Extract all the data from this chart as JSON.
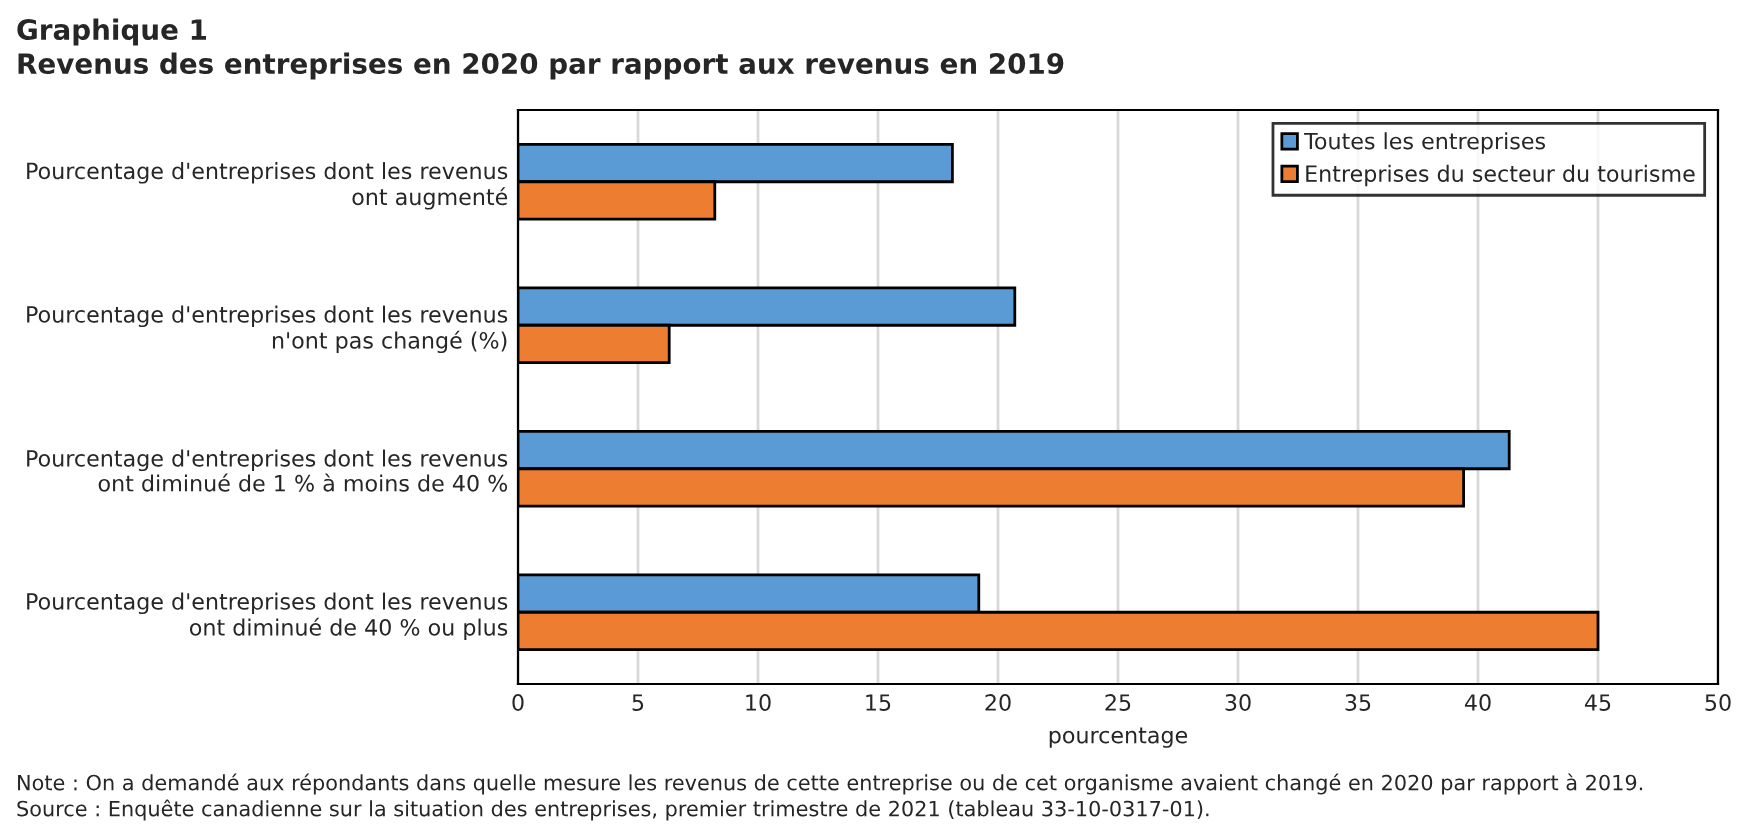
{
  "chart_data": {
    "type": "bar",
    "orientation": "horizontal",
    "title": "Graphique 1",
    "subtitle": "Revenus des entreprises en 2020 par rapport aux revenus en 2019",
    "categories": [
      "Pourcentage d'entreprises dont les revenus\nont augmenté",
      "Pourcentage d'entreprises dont les revenus\nn'ont pas changé (%)",
      "Pourcentage d'entreprises dont les revenus\nont diminué de 1 % à moins de 40 %",
      "Pourcentage d'entreprises dont les revenus\nont diminué de 40 % ou plus"
    ],
    "series": [
      {
        "name": "Toutes les entreprises",
        "color": "#5b9bd5",
        "values": [
          18.1,
          20.7,
          41.3,
          19.2
        ]
      },
      {
        "name": "Entreprises du secteur du tourisme",
        "color": "#ed7d31",
        "values": [
          8.2,
          6.3,
          39.4,
          45.0
        ]
      }
    ],
    "xlabel": "pourcentage",
    "xlim": [
      0,
      50
    ],
    "xticks": [
      0,
      5,
      10,
      15,
      20,
      25,
      30,
      35,
      40,
      45,
      50
    ],
    "grid": "x",
    "legend": "top right",
    "annotations": [
      "Note : On a demandé aux répondants dans quelle mesure les revenus de cette entreprise ou de cet organisme avaient changé en 2020 par rapport à 2019.",
      "Source : Enquête canadienne sur la situation des entreprises, premier trimestre de 2021 (tableau 33-10-0317-01)."
    ]
  }
}
